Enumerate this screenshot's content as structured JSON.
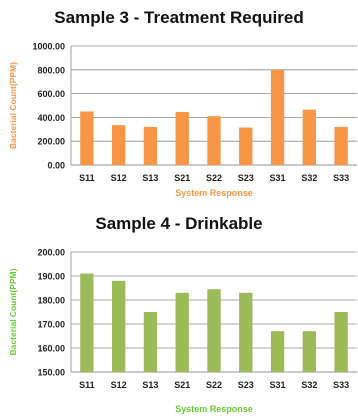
{
  "charts": [
    {
      "title": "Sample 3  - Treatment Required",
      "color": "#F79646",
      "label_color": "#F79646",
      "chart_data": {
        "type": "bar",
        "categories": [
          "S11",
          "S12",
          "S13",
          "S21",
          "S22",
          "S23",
          "S31",
          "S32",
          "S33"
        ],
        "values": [
          450,
          335,
          320,
          445,
          410,
          315,
          800,
          465,
          320
        ],
        "yticks": [
          "0.00",
          "200.00",
          "400.00",
          "600.00",
          "800.00",
          "1000.00"
        ],
        "ylim": [
          0,
          1000
        ],
        "xlabel": "System Response",
        "ylabel": "Bacterial Count(PPM)",
        "grid": true
      }
    },
    {
      "title": "Sample 4  - Drinkable",
      "color": "#9BBB59",
      "label_color": "#66CC33",
      "chart_data": {
        "type": "bar",
        "categories": [
          "S11",
          "S12",
          "S13",
          "S21",
          "S22",
          "S23",
          "S31",
          "S32",
          "S33"
        ],
        "values": [
          191,
          188,
          175,
          183,
          184.5,
          183,
          167,
          167,
          175
        ],
        "yticks": [
          "150.00",
          "160.00",
          "170.00",
          "180.00",
          "190.00",
          "200.00"
        ],
        "ylim": [
          150,
          200
        ],
        "xlabel": "System Response",
        "ylabel": "Bacterial Count(PPM)",
        "grid": true
      }
    }
  ]
}
